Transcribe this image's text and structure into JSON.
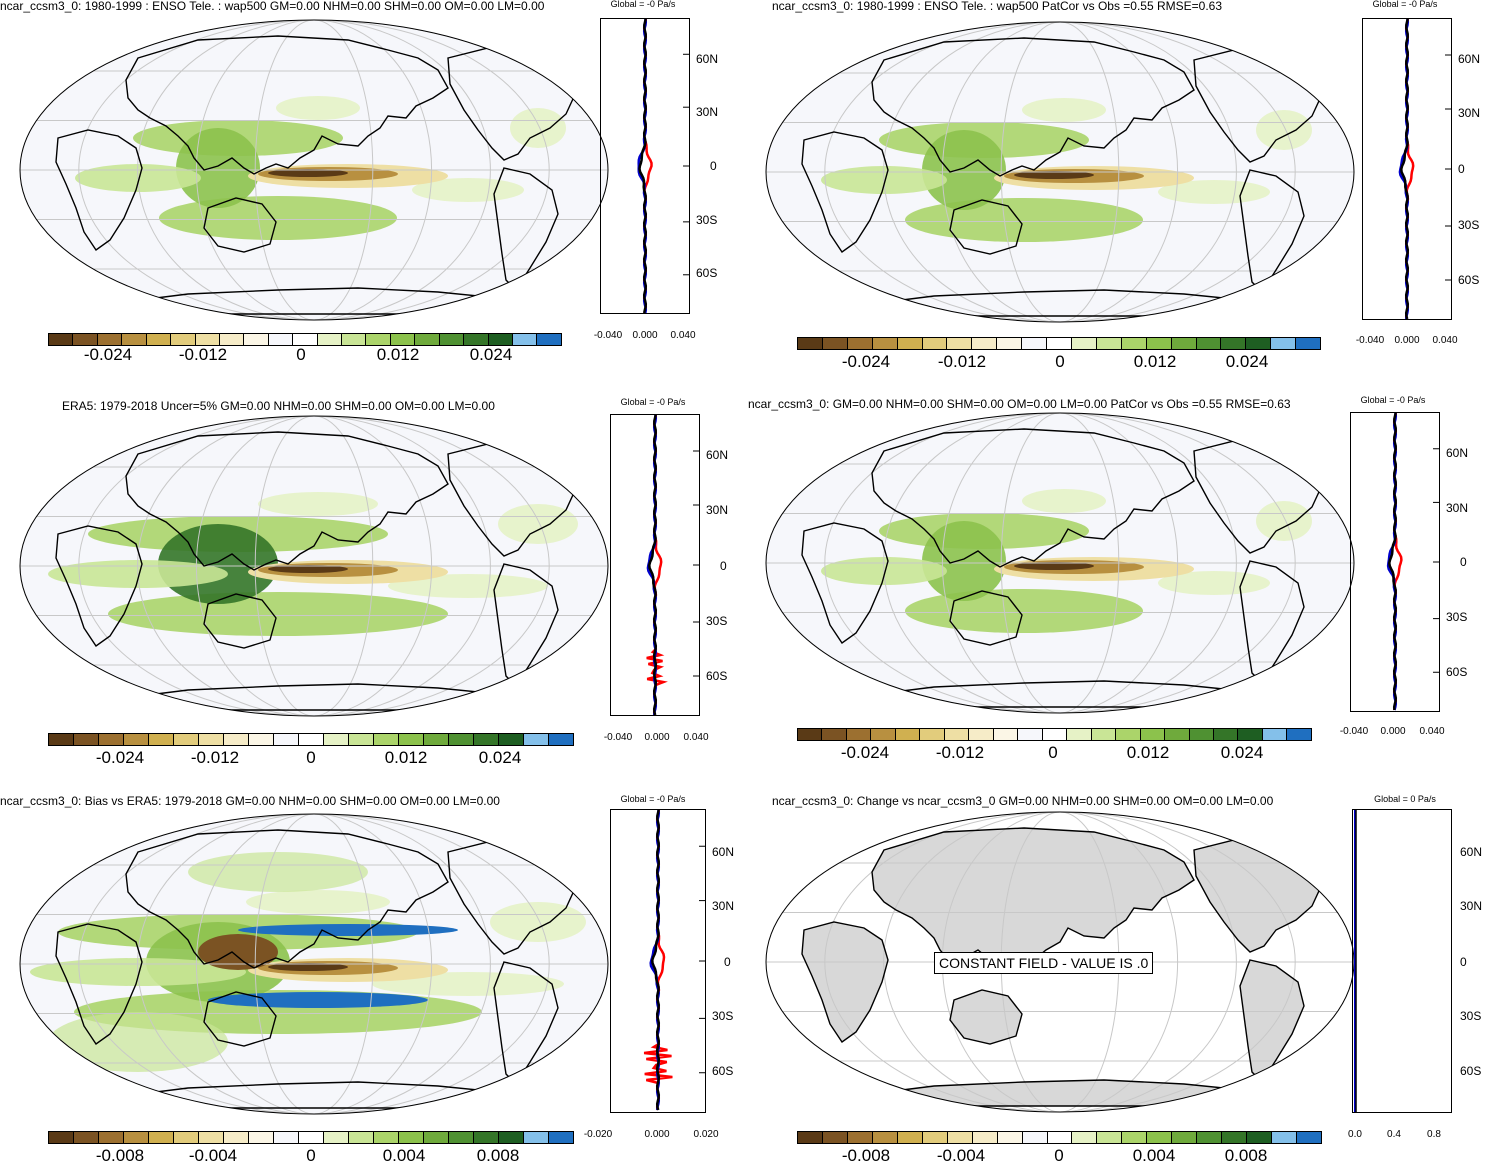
{
  "panels": [
    {
      "id": "model",
      "title": "ncar_ccsm3_0: 1980-1999 : ENSO Tele. : wap500 GM=0.00 NHM=0.00 SHM=0.00 OM=0.00 LM=0.00",
      "zonal_title": "Global = -0 Pa/s",
      "cbar_labels": [
        "-0.024",
        "-0.012",
        "0",
        "0.012",
        "0.024"
      ],
      "zonal_xticks": [
        "-0.040",
        "0.000",
        "0.040"
      ],
      "zonal_yticks": [
        "60N",
        "30N",
        "0",
        "30S",
        "60S"
      ]
    },
    {
      "id": "model-repeat",
      "title": "ncar_ccsm3_0: 1980-1999 : ENSO Tele. : wap500 PatCor vs Obs =0.55 RMSE=0.63",
      "zonal_title": "Global = -0 Pa/s",
      "cbar_labels": [
        "-0.024",
        "-0.012",
        "0",
        "0.012",
        "0.024"
      ],
      "zonal_xticks": [
        "-0.040",
        "0.000",
        "0.040"
      ],
      "zonal_yticks": [
        "60N",
        "30N",
        "0",
        "30S",
        "60S"
      ]
    },
    {
      "id": "obs",
      "title": "ERA5: 1979-2018 Uncer=5% GM=0.00 NHM=0.00 SHM=0.00 OM=0.00 LM=0.00",
      "zonal_title": "Global = -0 Pa/s",
      "cbar_labels": [
        "-0.024",
        "-0.012",
        "0",
        "0.012",
        "0.024"
      ],
      "zonal_xticks": [
        "-0.040",
        "0.000",
        "0.040"
      ],
      "zonal_yticks": [
        "60N",
        "30N",
        "0",
        "30S",
        "60S"
      ]
    },
    {
      "id": "model-stats",
      "title": "ncar_ccsm3_0: GM=0.00 NHM=0.00 SHM=0.00 OM=0.00 LM=0.00 PatCor vs Obs =0.55 RMSE=0.63",
      "zonal_title": "Global = -0 Pa/s",
      "cbar_labels": [
        "-0.024",
        "-0.012",
        "0",
        "0.012",
        "0.024"
      ],
      "zonal_xticks": [
        "-0.040",
        "0.000",
        "0.040"
      ],
      "zonal_yticks": [
        "60N",
        "30N",
        "0",
        "30S",
        "60S"
      ]
    },
    {
      "id": "bias",
      "title": "ncar_ccsm3_0: Bias vs ERA5: 1979-2018 GM=0.00 NHM=0.00 SHM=0.00 OM=0.00 LM=0.00",
      "zonal_title": "Global = -0 Pa/s",
      "cbar_labels": [
        "-0.008",
        "-0.004",
        "0",
        "0.004",
        "0.008"
      ],
      "zonal_xticks": [
        "-0.020",
        "0.000",
        "0.020"
      ],
      "zonal_yticks": [
        "60N",
        "30N",
        "0",
        "30S",
        "60S"
      ]
    },
    {
      "id": "change",
      "title": "ncar_ccsm3_0: Change vs ncar_ccsm3_0 GM=0.00 NHM=0.00 SHM=0.00 OM=0.00 LM=0.00",
      "zonal_title": "Global = 0 Pa/s",
      "cbar_labels": [
        "-0.008",
        "-0.004",
        "0",
        "0.004",
        "0.008"
      ],
      "zonal_xticks": [
        "0.0",
        "0.4",
        "0.8"
      ],
      "zonal_yticks": [
        "60N",
        "30N",
        "0",
        "30S",
        "60S"
      ],
      "constant_text": "CONSTANT FIELD - VALUE IS .0"
    }
  ],
  "colors": {
    "palette": [
      "#5a3a16",
      "#7b5323",
      "#9c7030",
      "#b89040",
      "#d0b050",
      "#e2cc7c",
      "#eedfa4",
      "#f6ecc8",
      "#fbf6e6",
      "#f6f7fb",
      "#ffffff",
      "#e6f2c6",
      "#c9e596",
      "#abd46a",
      "#8cc24c",
      "#6faa3c",
      "#4f9132",
      "#347528",
      "#1e5e22",
      "#84c0ea",
      "#1f6fc0"
    ],
    "map_background": "#f6f7fb",
    "land_grey": "#d8d8d8",
    "zonal_model": "#000000",
    "zonal_obs": "#ff0000",
    "zonal_other": "#0000cc"
  }
}
